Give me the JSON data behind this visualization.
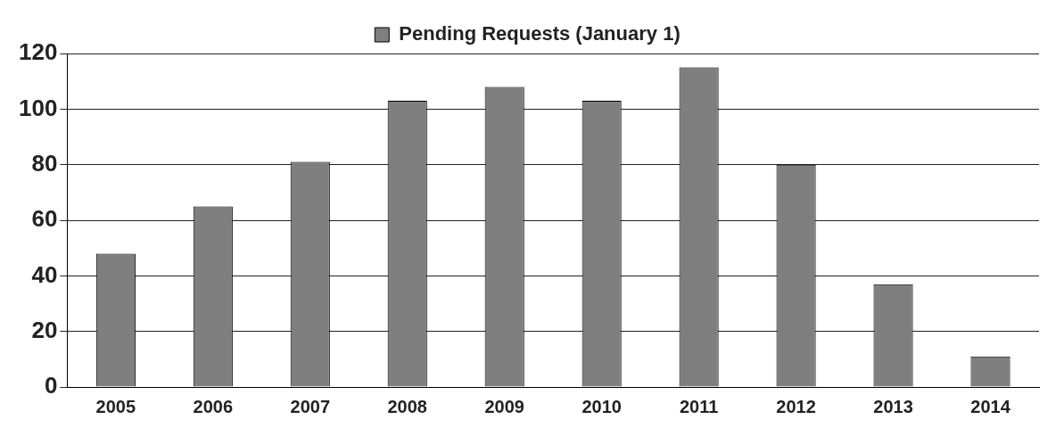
{
  "chart_data": {
    "type": "bar",
    "categories": [
      "2005",
      "2006",
      "2007",
      "2008",
      "2009",
      "2010",
      "2011",
      "2012",
      "2013",
      "2014"
    ],
    "series": [
      {
        "name": "Pending Requests (January 1)",
        "color": "#7f7f7f",
        "values": [
          48,
          65,
          81,
          103,
          108,
          103,
          115,
          80,
          37,
          11
        ]
      }
    ],
    "ylim": [
      0,
      120
    ],
    "yticks": [
      0,
      20,
      40,
      60,
      80,
      100,
      120
    ],
    "grid": "y",
    "legend": "top"
  }
}
